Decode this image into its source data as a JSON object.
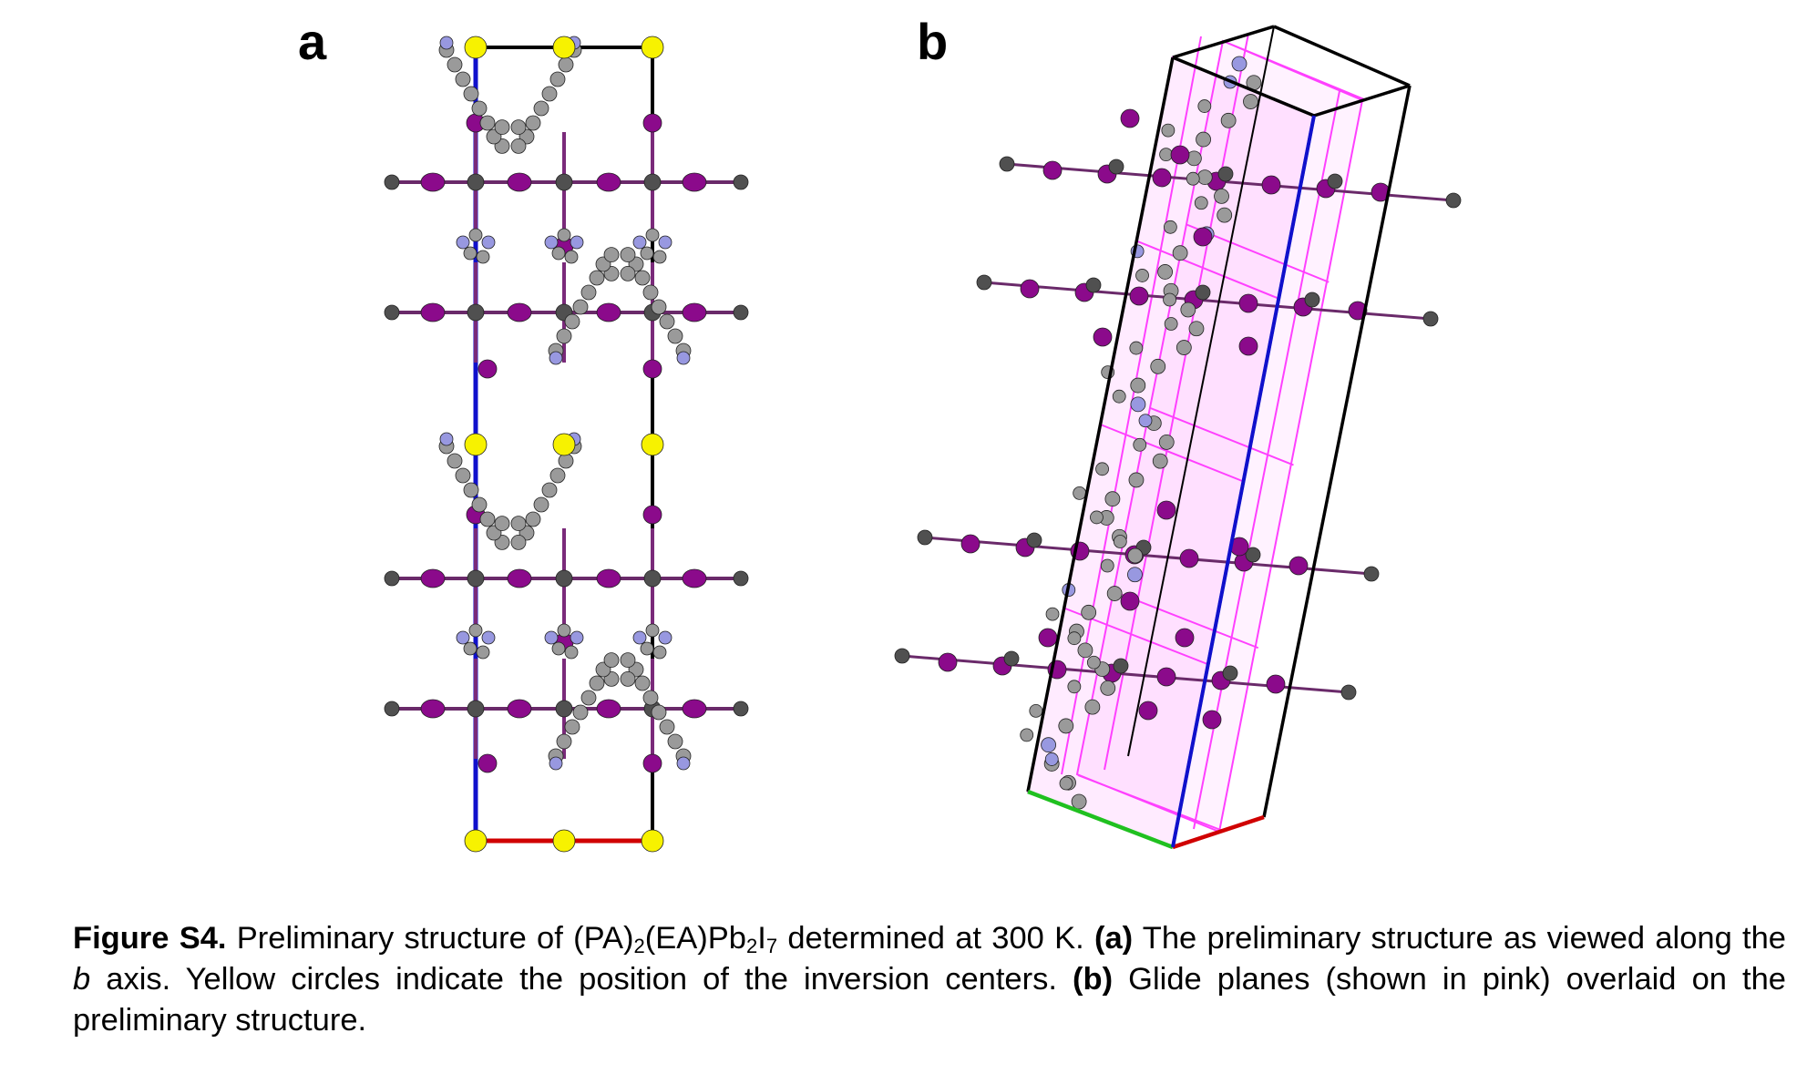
{
  "panels": {
    "a": "a",
    "b": "b"
  },
  "caption": {
    "label": "Figure S4.",
    "t1": " Preliminary structure of (PA)",
    "s1": "2",
    "t2": "(EA)Pb",
    "s2": "2",
    "t3": "I",
    "s3": "7",
    "t4": " determined at 300 K. ",
    "a_label": "(a)",
    "t5": " The preliminary structure as viewed along the ",
    "axis": "b",
    "t6": " axis. Yellow circles indicate the position of the inversion centers. ",
    "b_label": "(b)",
    "t7": " Glide planes (shown in pink) overlaid on the preliminary structure."
  },
  "colors": {
    "iodine": "#8b0a8b",
    "lead": "#505050",
    "carbon": "#9a9a9a",
    "nitrogen": "#9898e0",
    "inversion_center": "#f7f200",
    "glide_plane": "#ff40ff",
    "axis_a": "#d00000",
    "axis_b": "#00b000",
    "axis_c": "#0000cc"
  }
}
